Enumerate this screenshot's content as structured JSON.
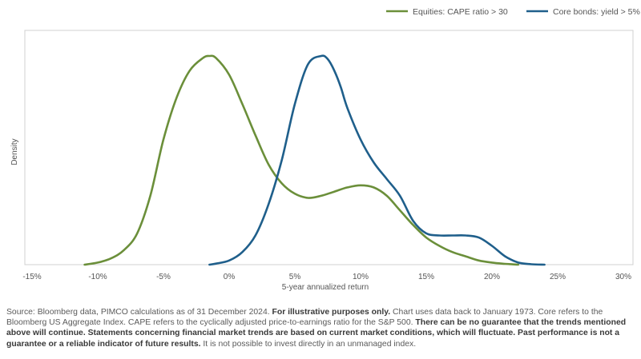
{
  "chart_data": {
    "type": "line",
    "xlabel": "5-year annualized return",
    "ylabel": "Density",
    "x_ticks": [
      "-15%",
      "-10%",
      "-5%",
      "0%",
      "5%",
      "10%",
      "15%",
      "20%",
      "25%",
      "30%"
    ],
    "x_tick_values": [
      -15,
      -10,
      -5,
      0,
      5,
      10,
      15,
      20,
      25,
      30
    ],
    "xlim": [
      -15,
      30
    ],
    "ylim": [
      0,
      1
    ],
    "y_ticks_shown": false,
    "grid": false,
    "legend_position": "top-right",
    "series": [
      {
        "name": "Equities: CAPE ratio > 30",
        "color": "#6b8f3a",
        "x": [
          -11,
          -10,
          -9,
          -8,
          -7,
          -6,
          -5,
          -4,
          -3,
          -2,
          -1.5,
          -1,
          0,
          1,
          2,
          3,
          4,
          5,
          6,
          7,
          8,
          9,
          10,
          11,
          12,
          13,
          14,
          15,
          16,
          17,
          18,
          19,
          20,
          21,
          22
        ],
        "y": [
          0.0,
          0.01,
          0.03,
          0.07,
          0.15,
          0.33,
          0.6,
          0.8,
          0.93,
          0.99,
          1.0,
          0.99,
          0.91,
          0.77,
          0.62,
          0.48,
          0.39,
          0.34,
          0.32,
          0.33,
          0.35,
          0.37,
          0.38,
          0.37,
          0.33,
          0.26,
          0.19,
          0.13,
          0.09,
          0.06,
          0.04,
          0.02,
          0.01,
          0.004,
          0.0
        ]
      },
      {
        "name": "Core bonds: yield > 5%",
        "color": "#1f5f8b",
        "x": [
          -1.5,
          -1,
          0,
          1,
          2,
          3,
          4,
          5,
          6,
          7,
          7.5,
          8,
          8.5,
          9,
          10,
          11,
          12,
          13,
          14,
          15,
          16,
          17,
          18,
          19,
          20,
          21,
          22,
          23,
          24
        ],
        "y": [
          0.0,
          0.005,
          0.02,
          0.06,
          0.14,
          0.29,
          0.5,
          0.77,
          0.96,
          1.0,
          0.985,
          0.93,
          0.85,
          0.75,
          0.6,
          0.49,
          0.41,
          0.33,
          0.21,
          0.15,
          0.14,
          0.14,
          0.14,
          0.13,
          0.09,
          0.04,
          0.01,
          0.002,
          0.0
        ]
      }
    ]
  },
  "footnote": {
    "p1": "Source: Bloomberg data, PIMCO calculations as of 31 December 2024. ",
    "b1": "For illustrative purposes only.",
    "p2": " Chart uses data back to January 1973. Core refers to the Bloomberg US Aggregate Index. CAPE refers to the cyclically adjusted price-to-earnings ratio for the S&P 500. ",
    "b2": "There can be no guarantee that the trends mentioned above will continue. Statements concerning financial market trends are based on current market conditions, which will fluctuate. Past performance is not a guarantee or a reliable indicator of future results.",
    "p3": " It is not possible to invest directly in an unmanaged index."
  }
}
